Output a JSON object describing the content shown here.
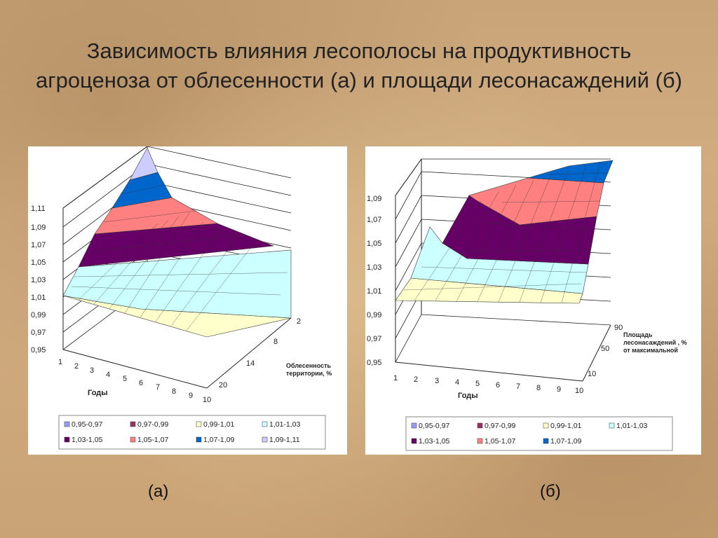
{
  "slide": {
    "title": "Зависимость влияния лесополосы на продуктивность агроценоза от облесенности (а) и площади лесонасаждений (б)",
    "caption_a": "(а)",
    "caption_b": "(б)"
  },
  "chart_data": [
    {
      "id": "a",
      "type": "surface",
      "x": {
        "title": "Годы",
        "ticks": [
          "1",
          "2",
          "3",
          "4",
          "5",
          "6",
          "7",
          "8",
          "9",
          "10"
        ]
      },
      "y": {
        "title": "Облесенность территории, %",
        "ticks": [
          "2",
          "8",
          "14",
          "20"
        ]
      },
      "z": {
        "ticks": [
          "0,95",
          "0,97",
          "0,99",
          "1,01",
          "1,03",
          "1,05",
          "1,07",
          "1,09",
          "1,11"
        ],
        "range": [
          0.95,
          1.11
        ]
      },
      "legend": {
        "position": "bottom",
        "entries": [
          {
            "label": "0,95-0,97",
            "color": "#9999ff"
          },
          {
            "label": "0,97-0,99",
            "color": "#993366"
          },
          {
            "label": "0,99-1,01",
            "color": "#ffffcc"
          },
          {
            "label": "1,01-1,03",
            "color": "#ccffff"
          },
          {
            "label": "1,03-1,05",
            "color": "#660066"
          },
          {
            "label": "1,05-1,07",
            "color": "#ff8080"
          },
          {
            "label": "1,07-1,09",
            "color": "#0066cc"
          },
          {
            "label": "1,09-1,11",
            "color": "#ccccff"
          }
        ]
      }
    },
    {
      "id": "b",
      "type": "surface",
      "x": {
        "title": "Годы",
        "ticks": [
          "1",
          "2",
          "3",
          "4",
          "5",
          "6",
          "7",
          "8",
          "9",
          "10"
        ]
      },
      "y": {
        "title": "Площадь лесонасаждений , % от максимальной",
        "ticks": [
          "10",
          "50",
          "90"
        ]
      },
      "z": {
        "ticks": [
          "0,95",
          "0,97",
          "0,99",
          "1,01",
          "1,03",
          "1,05",
          "1,07",
          "1,09"
        ],
        "range": [
          0.95,
          1.09
        ]
      },
      "legend": {
        "position": "bottom",
        "entries": [
          {
            "label": "0,95-0,97",
            "color": "#9999ff"
          },
          {
            "label": "0,97-0,99",
            "color": "#993366"
          },
          {
            "label": "0,99-1,01",
            "color": "#ffffcc"
          },
          {
            "label": "1,01-1,03",
            "color": "#ccffff"
          },
          {
            "label": "1,03-1,05",
            "color": "#660066"
          },
          {
            "label": "1,05-1,07",
            "color": "#ff8080"
          },
          {
            "label": "1,07-1,09",
            "color": "#0066cc"
          }
        ]
      }
    }
  ]
}
